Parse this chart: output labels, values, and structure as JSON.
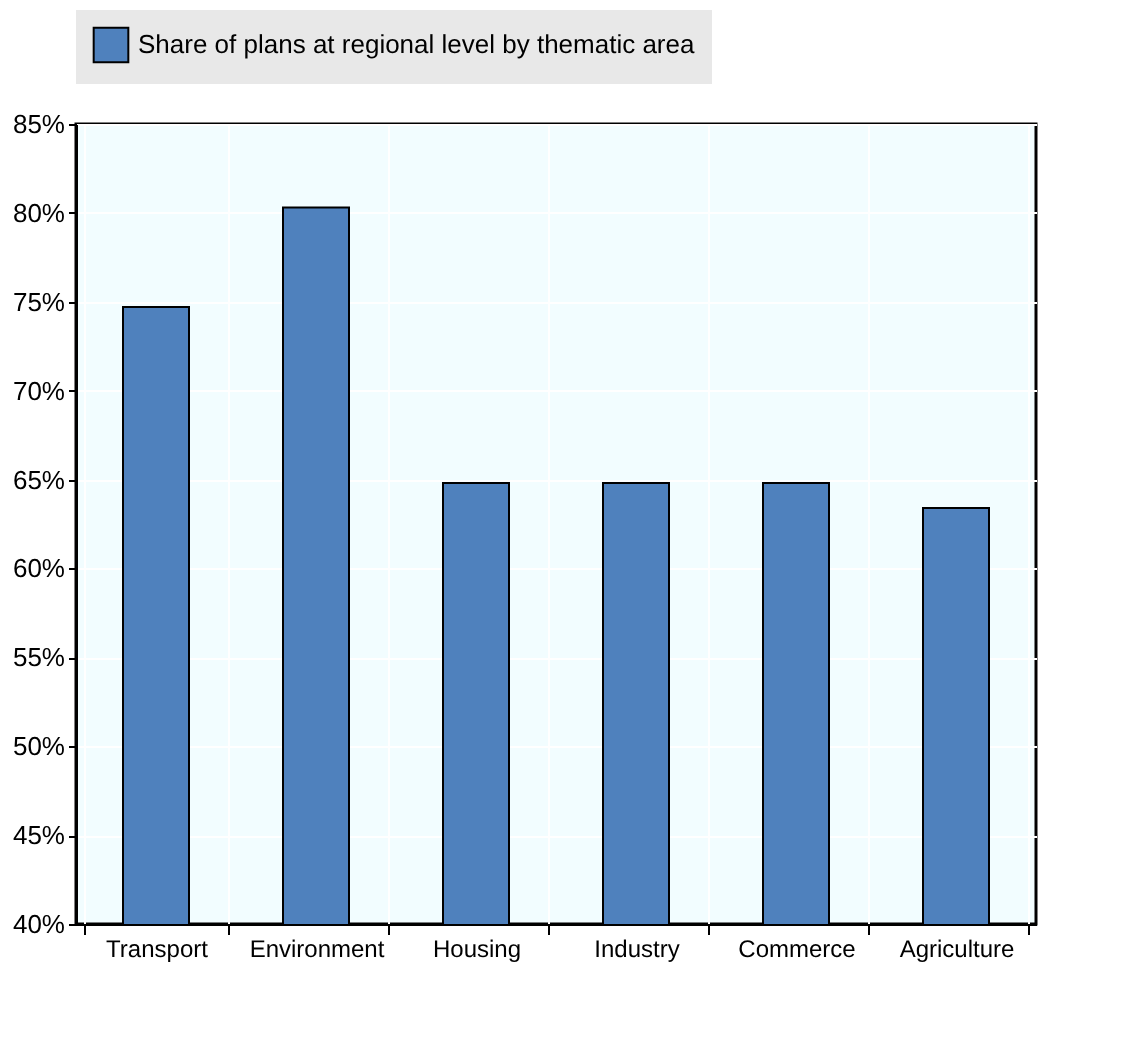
{
  "chart_data": {
    "type": "bar",
    "categories": [
      "Transport",
      "Environment",
      "Housing",
      "Industry",
      "Commerce",
      "Agriculture"
    ],
    "series": [
      {
        "name": "Share of plans at regional level by thematic area",
        "color": "#4f81bd",
        "values": [
          74.7,
          80.3,
          64.8,
          64.8,
          64.8,
          63.4
        ]
      }
    ],
    "ylim": [
      40,
      85
    ],
    "yticks": [
      {
        "value": 40,
        "label": "40%"
      },
      {
        "value": 45,
        "label": "45%"
      },
      {
        "value": 50,
        "label": "50%"
      },
      {
        "value": 55,
        "label": "55%"
      },
      {
        "value": 60,
        "label": "60%"
      },
      {
        "value": 65,
        "label": "65%"
      },
      {
        "value": 70,
        "label": "70%"
      },
      {
        "value": 75,
        "label": "75%"
      },
      {
        "value": 80,
        "label": "80%"
      },
      {
        "value": 85,
        "label": "85%"
      }
    ],
    "grid": true,
    "legend": "top"
  }
}
